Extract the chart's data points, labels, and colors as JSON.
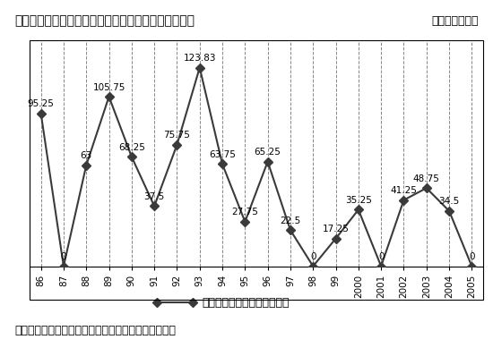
{
  "title_left": "図１：日本のテレビドラマの中国大陸での総放送時間",
  "title_right": "（単位：時間）",
  "years": [
    "86",
    "87",
    "88",
    "89",
    "90",
    "91",
    "92",
    "93",
    "94",
    "95",
    "96",
    "97",
    "98",
    "99",
    "2000",
    "2001",
    "2002",
    "2003",
    "2004",
    "2005"
  ],
  "values": [
    95.25,
    0,
    63,
    105.75,
    68.25,
    37.5,
    75.75,
    123.83,
    63.75,
    27.75,
    65.25,
    22.5,
    0,
    17.25,
    35.25,
    0,
    41.25,
    48.75,
    34.5,
    0
  ],
  "legend_label": "総放送時間（テレビドラマ）",
  "footnote": "データ：施唯「大陸進口日本電視節目的変化及原因」",
  "line_color": "#3a3a3a",
  "marker": "D",
  "marker_size": 5,
  "ylim": [
    0,
    140
  ],
  "label_fontsize": 7.5,
  "title_fontsize": 10,
  "footnote_fontsize": 9,
  "legend_fontsize": 9,
  "xtick_fontsize": 7.5,
  "background_color": "#ffffff"
}
